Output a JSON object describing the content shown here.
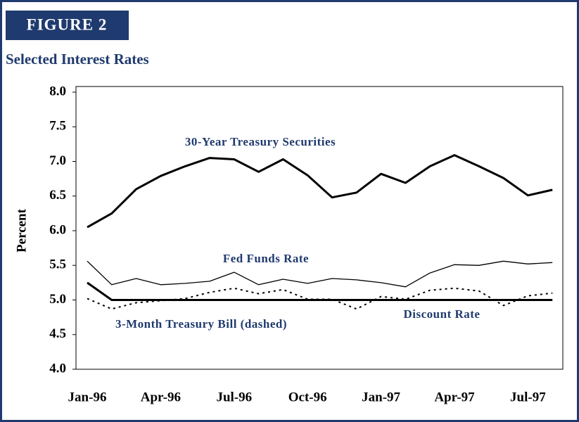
{
  "header": "FIGURE 2",
  "chart_data": {
    "type": "line",
    "title": "Selected Interest Rates",
    "ylabel": "Percent",
    "categories": [
      "Jan-96",
      null,
      null,
      "Apr-96",
      null,
      null,
      "Jul-96",
      null,
      null,
      "Oct-96",
      null,
      null,
      "Jan-97",
      null,
      null,
      "Apr-97",
      null,
      null,
      "Jul-97",
      null
    ],
    "series": [
      {
        "name": "30-Year Treasury Securities",
        "color": "#000000",
        "width": 3,
        "dashed": false,
        "values": [
          6.05,
          6.25,
          6.6,
          6.79,
          6.93,
          7.05,
          7.03,
          6.85,
          7.03,
          6.8,
          6.48,
          6.55,
          6.82,
          6.69,
          6.93,
          7.09,
          6.93,
          6.76,
          6.51,
          6.59
        ]
      },
      {
        "name": "Fed Funds Rate",
        "color": "#000000",
        "width": 1.3,
        "dashed": false,
        "values": [
          5.56,
          5.22,
          5.31,
          5.22,
          5.24,
          5.27,
          5.4,
          5.22,
          5.3,
          5.24,
          5.31,
          5.29,
          5.25,
          5.19,
          5.39,
          5.51,
          5.5,
          5.56,
          5.52,
          5.54
        ]
      },
      {
        "name": "Discount Rate",
        "color": "#000000",
        "width": 3,
        "dashed": false,
        "values": [
          5.25,
          5.0,
          5.0,
          5.0,
          5.0,
          5.0,
          5.0,
          5.0,
          5.0,
          5.0,
          5.0,
          5.0,
          5.0,
          5.0,
          5.0,
          5.0,
          5.0,
          5.0,
          5.0,
          5.0
        ]
      },
      {
        "name": "3-Month Treasury Bill (dashed)",
        "color": "#000000",
        "width": 2,
        "dashed": true,
        "values": [
          5.02,
          4.87,
          4.96,
          4.99,
          5.02,
          5.11,
          5.17,
          5.09,
          5.15,
          5.01,
          5.01,
          4.87,
          5.05,
          5.01,
          5.14,
          5.17,
          5.13,
          4.92,
          5.06,
          5.1
        ]
      }
    ],
    "ylim": [
      4,
      8
    ],
    "yticks": [
      {
        "value": 4,
        "label": "4.0"
      },
      {
        "value": 4.5,
        "label": "4.5"
      },
      {
        "value": 5,
        "label": "5.0"
      },
      {
        "value": 5.5,
        "label": "5.5"
      },
      {
        "value": 6,
        "label": "6.0"
      },
      {
        "value": 6.5,
        "label": "6.5"
      },
      {
        "value": 7,
        "label": "7.0"
      },
      {
        "value": 7.5,
        "label": "7.5"
      },
      {
        "value": 8,
        "label": "8.0"
      }
    ],
    "grid": false
  }
}
